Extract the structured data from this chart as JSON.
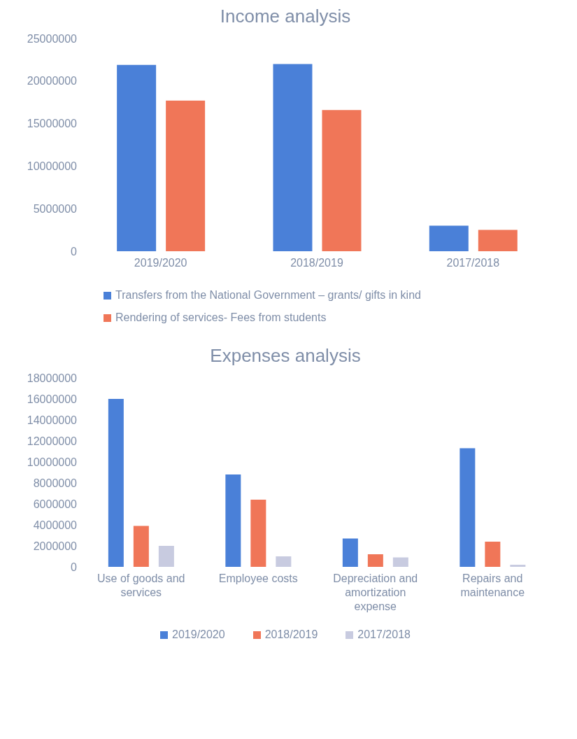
{
  "chart_data": [
    {
      "type": "bar",
      "title": "Income analysis",
      "categories": [
        "2019/2020",
        "2018/2019",
        "2017/2018"
      ],
      "series": [
        {
          "name": "Transfers from the National Government – grants/ gifts in kind",
          "color": "#4a80d8",
          "values": [
            21900000,
            22000000,
            3000000
          ]
        },
        {
          "name": "Rendering of services- Fees from students",
          "color": "#f07658",
          "values": [
            17700000,
            16600000,
            2500000
          ]
        }
      ],
      "ylim": [
        0,
        25000000
      ],
      "yticks": [
        0,
        5000000,
        10000000,
        15000000,
        20000000,
        25000000
      ],
      "legend": "bottom"
    },
    {
      "type": "bar",
      "title": "Expenses analysis",
      "categories": [
        "Use of goods and services",
        "Employee costs",
        "Depreciation and amortization expense",
        "Repairs and maintenance"
      ],
      "series": [
        {
          "name": "2019/2020",
          "color": "#4a80d8",
          "values": [
            16000000,
            8800000,
            2700000,
            11300000
          ]
        },
        {
          "name": "2018/2019",
          "color": "#f07658",
          "values": [
            3900000,
            6400000,
            1200000,
            2400000
          ]
        },
        {
          "name": "2017/2018",
          "color": "#c8cbe0",
          "values": [
            2000000,
            1000000,
            900000,
            200000
          ]
        }
      ],
      "ylim": [
        0,
        18000000
      ],
      "yticks": [
        0,
        2000000,
        4000000,
        6000000,
        8000000,
        10000000,
        12000000,
        14000000,
        16000000,
        18000000
      ],
      "legend": "bottom"
    }
  ]
}
